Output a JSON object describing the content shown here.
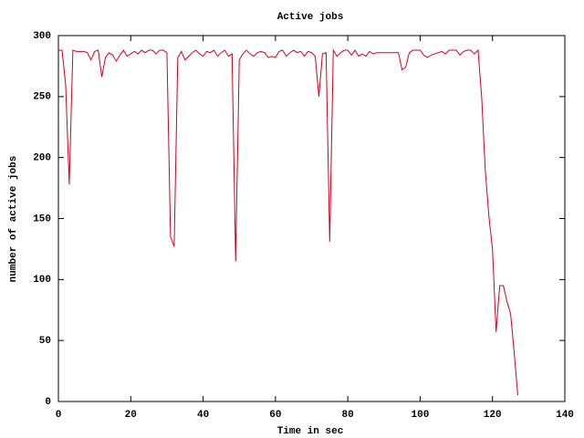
{
  "chart_data": {
    "type": "line",
    "title": "Active jobs",
    "xlabel": "Time in sec",
    "ylabel": "number of active jobs",
    "x": [
      0,
      1,
      2,
      3,
      4,
      5,
      6,
      7,
      8,
      9,
      10,
      11,
      12,
      13,
      14,
      15,
      16,
      17,
      18,
      19,
      20,
      21,
      22,
      23,
      24,
      25,
      26,
      27,
      28,
      29,
      30,
      31,
      32,
      33,
      34,
      35,
      36,
      37,
      38,
      39,
      40,
      41,
      42,
      43,
      44,
      45,
      46,
      47,
      48,
      49,
      50,
      51,
      52,
      53,
      54,
      55,
      56,
      57,
      58,
      59,
      60,
      61,
      62,
      63,
      64,
      65,
      66,
      67,
      68,
      69,
      70,
      71,
      72,
      73,
      74,
      75,
      76,
      77,
      78,
      79,
      80,
      81,
      82,
      83,
      84,
      85,
      86,
      87,
      88,
      89,
      90,
      91,
      92,
      93,
      94,
      95,
      96,
      97,
      98,
      99,
      100,
      101,
      102,
      103,
      104,
      105,
      106,
      107,
      108,
      109,
      110,
      111,
      112,
      113,
      114,
      115,
      116,
      117,
      118,
      119,
      120,
      121,
      122,
      123,
      124,
      125,
      126,
      127
    ],
    "values": [
      288,
      288,
      260,
      178,
      288,
      287,
      287,
      287,
      286,
      280,
      287,
      288,
      266,
      282,
      286,
      284,
      279,
      284,
      288,
      283,
      285,
      287,
      285,
      288,
      286,
      288,
      288,
      285,
      288,
      288,
      286,
      135,
      127,
      282,
      287,
      280,
      283,
      286,
      288,
      285,
      283,
      287,
      286,
      288,
      283,
      286,
      288,
      283,
      285,
      115,
      280,
      285,
      288,
      285,
      283,
      286,
      287,
      286,
      282,
      283,
      282,
      287,
      288,
      283,
      286,
      288,
      286,
      287,
      283,
      287,
      286,
      283,
      250,
      285,
      286,
      131,
      288,
      283,
      286,
      288,
      288,
      284,
      288,
      283,
      285,
      283,
      287,
      285,
      286,
      286,
      286,
      286,
      286,
      286,
      286,
      272,
      274,
      286,
      288,
      288,
      288,
      284,
      282,
      284,
      285,
      286,
      287,
      285,
      288,
      288,
      288,
      284,
      287,
      288,
      288,
      285,
      288,
      250,
      190,
      152,
      125,
      57,
      95,
      95,
      82,
      72,
      40,
      5
    ],
    "color": "#d0001c",
    "xlim": [
      0,
      140
    ],
    "xticks": [
      0,
      20,
      40,
      60,
      80,
      100,
      120,
      140
    ],
    "ylim": [
      0,
      300
    ],
    "yticks": [
      0,
      50,
      100,
      150,
      200,
      250,
      300
    ]
  }
}
